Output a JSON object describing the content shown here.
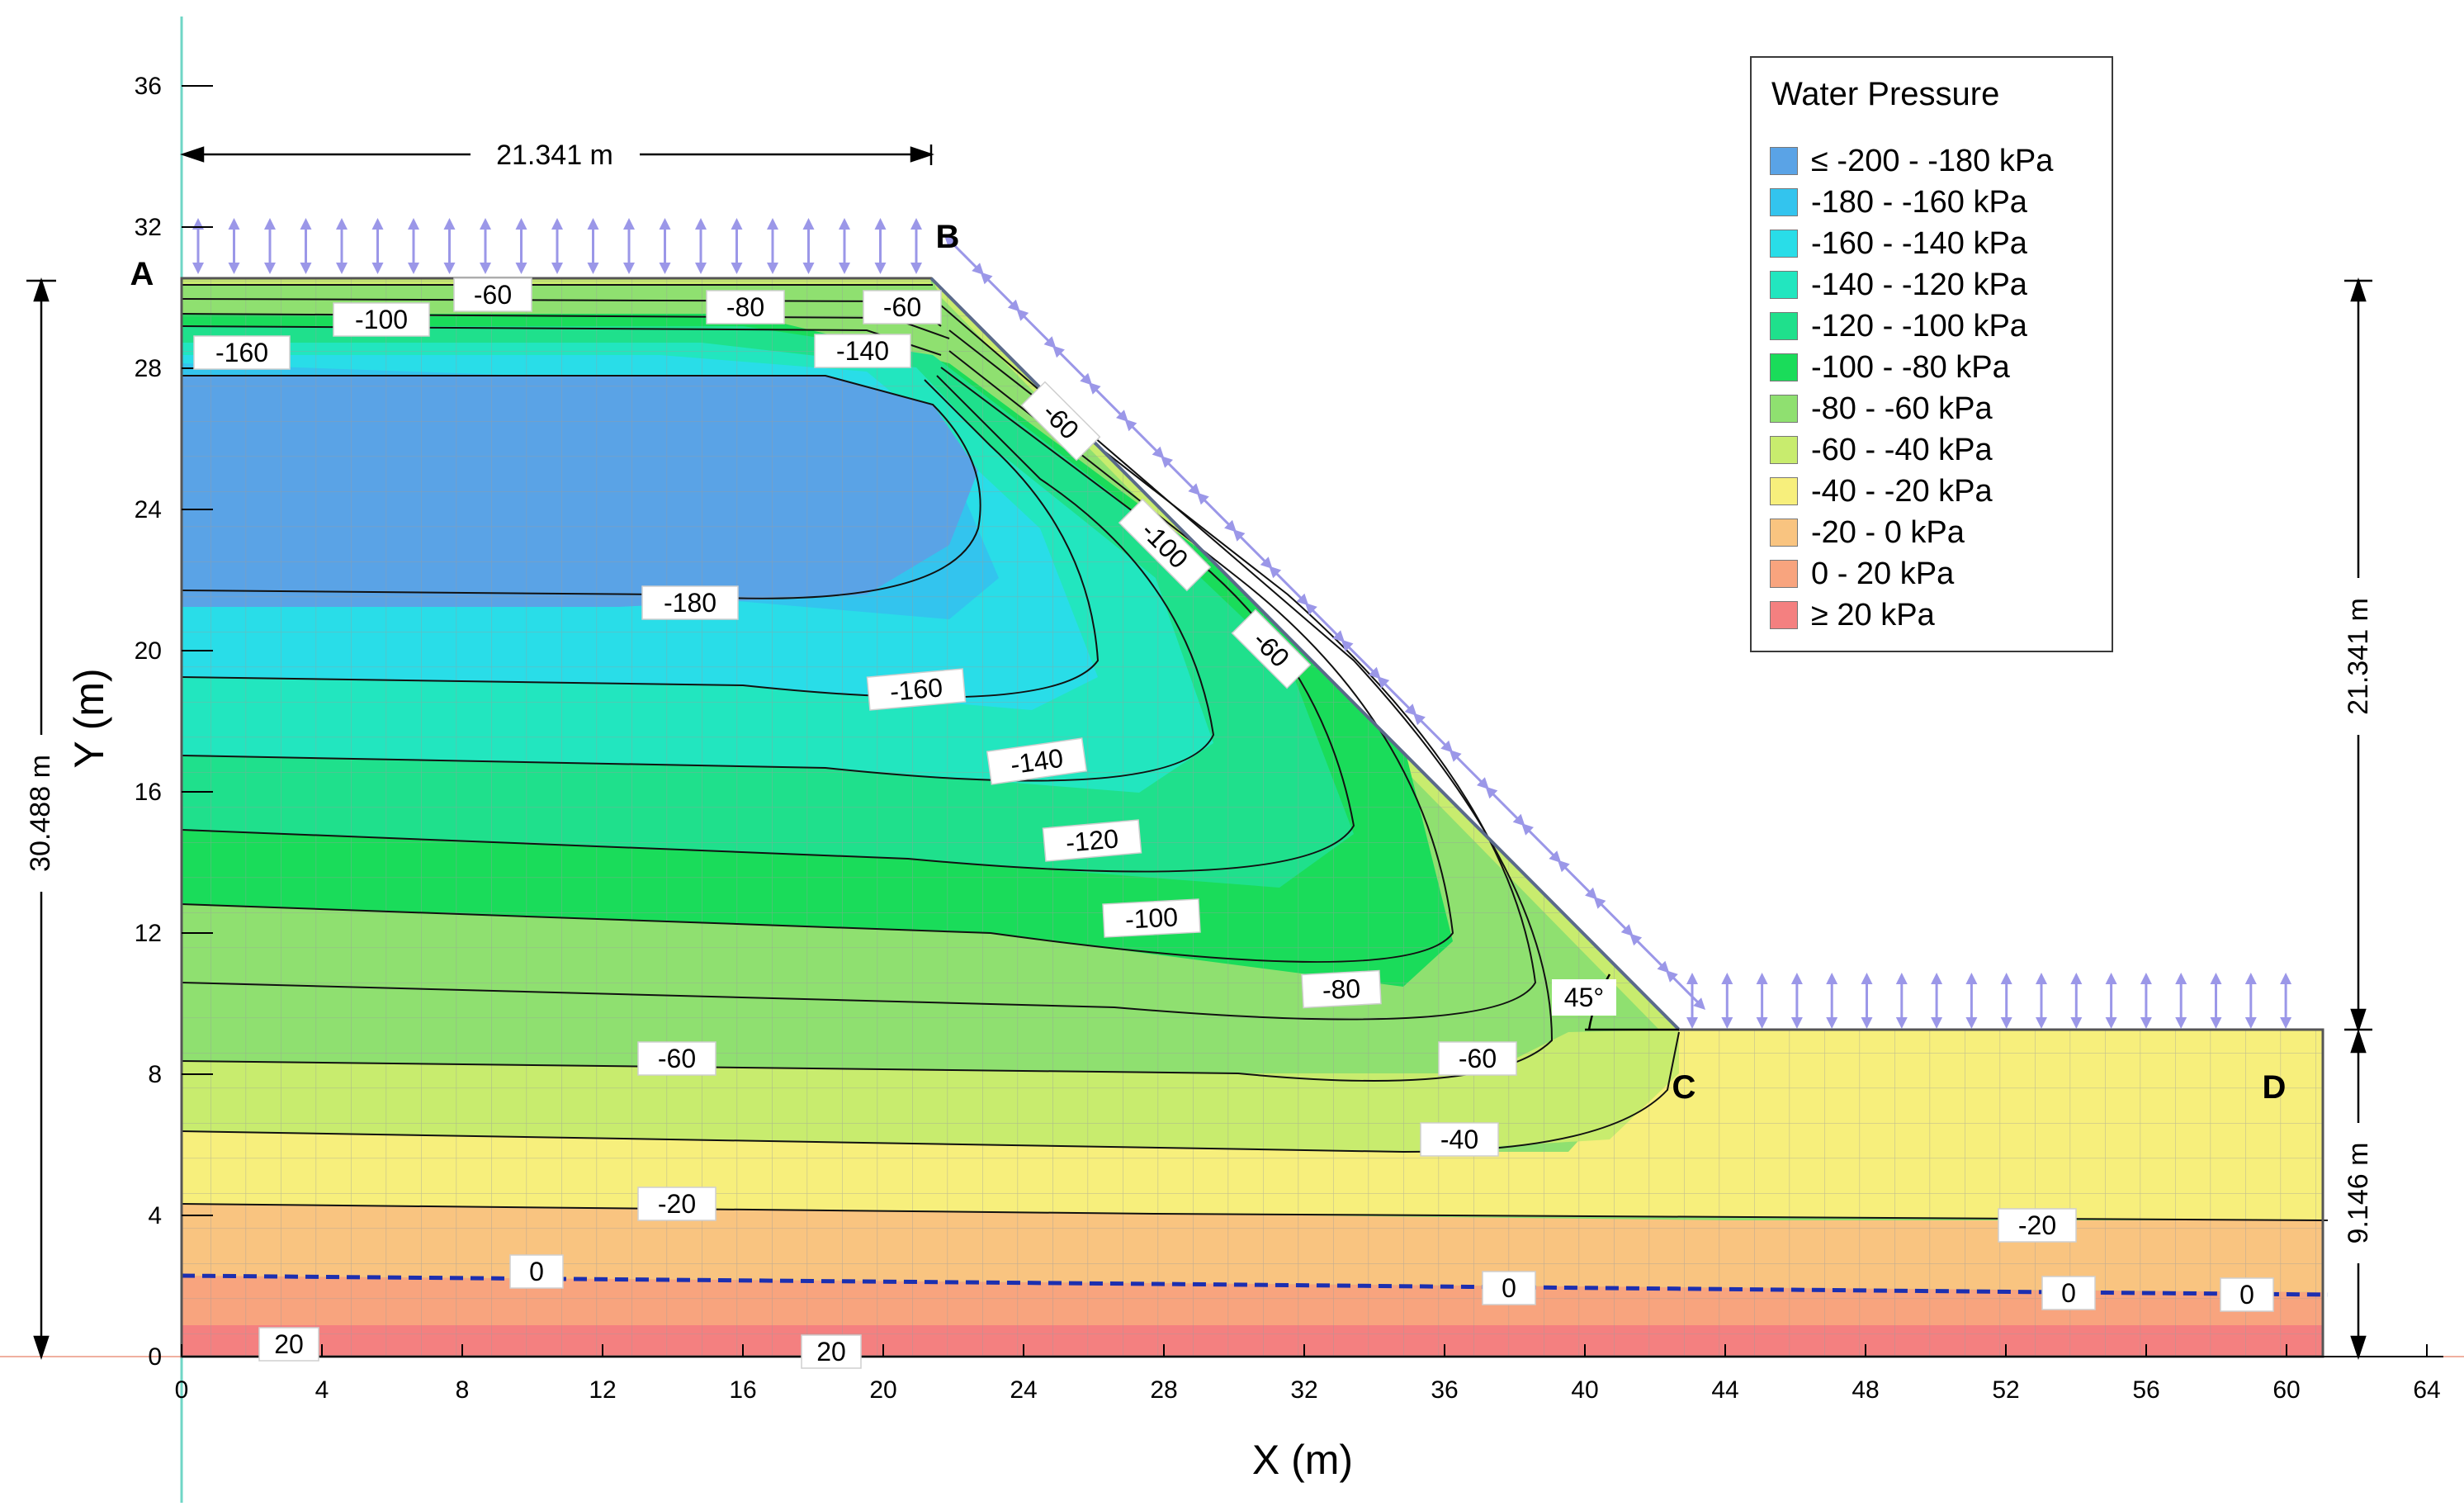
{
  "legend": {
    "title": "Water Pressure",
    "items": [
      {
        "label": "≤ -200 - -180 kPa",
        "color": "#5aa3e6"
      },
      {
        "label": "-180 - -160 kPa",
        "color": "#33c4ee"
      },
      {
        "label": "-160 - -140 kPa",
        "color": "#29dde8"
      },
      {
        "label": "-140 - -120 kPa",
        "color": "#22e6bf"
      },
      {
        "label": "-120 - -100 kPa",
        "color": "#1fe08c"
      },
      {
        "label": "-100 - -80 kPa",
        "color": "#1adc5a"
      },
      {
        "label": "-80 - -60 kPa",
        "color": "#8fe070"
      },
      {
        "label": "-60 - -40 kPa",
        "color": "#c8ec6e"
      },
      {
        "label": "-40 - -20 kPa",
        "color": "#f7ef7c"
      },
      {
        "label": "-20 - 0 kPa",
        "color": "#f9c480"
      },
      {
        "label": "0 - 20 kPa",
        "color": "#f8a47e"
      },
      {
        "label": "≥ 20 kPa",
        "color": "#f48080"
      }
    ]
  },
  "axes": {
    "xlabel": "X (m)",
    "ylabel": "Y (m)",
    "x_ticks": [
      "0",
      "4",
      "8",
      "12",
      "16",
      "20",
      "24",
      "28",
      "32",
      "36",
      "40",
      "44",
      "48",
      "52",
      "56",
      "60",
      "64"
    ],
    "y_ticks": [
      "0",
      "4",
      "8",
      "12",
      "16",
      "20",
      "24",
      "28",
      "32",
      "36"
    ]
  },
  "points": {
    "a": "A",
    "b": "B",
    "c": "C",
    "d": "D"
  },
  "dimensions": {
    "crest_width": "21.341 m",
    "total_height": "30.488 m",
    "slope_height": "21.341 m",
    "toe_height": "9.146 m",
    "angle": "45°"
  },
  "contour_labels": [
    "-60",
    "-80",
    "-60",
    "-100",
    "-140",
    "-160",
    "-60",
    "-100",
    "-60",
    "-180",
    "-160",
    "-140",
    "-120",
    "-100",
    "-80",
    "-60",
    "-60",
    "-40",
    "-20",
    "-20",
    "0",
    "0",
    "0",
    "0",
    "20",
    "20"
  ]
}
